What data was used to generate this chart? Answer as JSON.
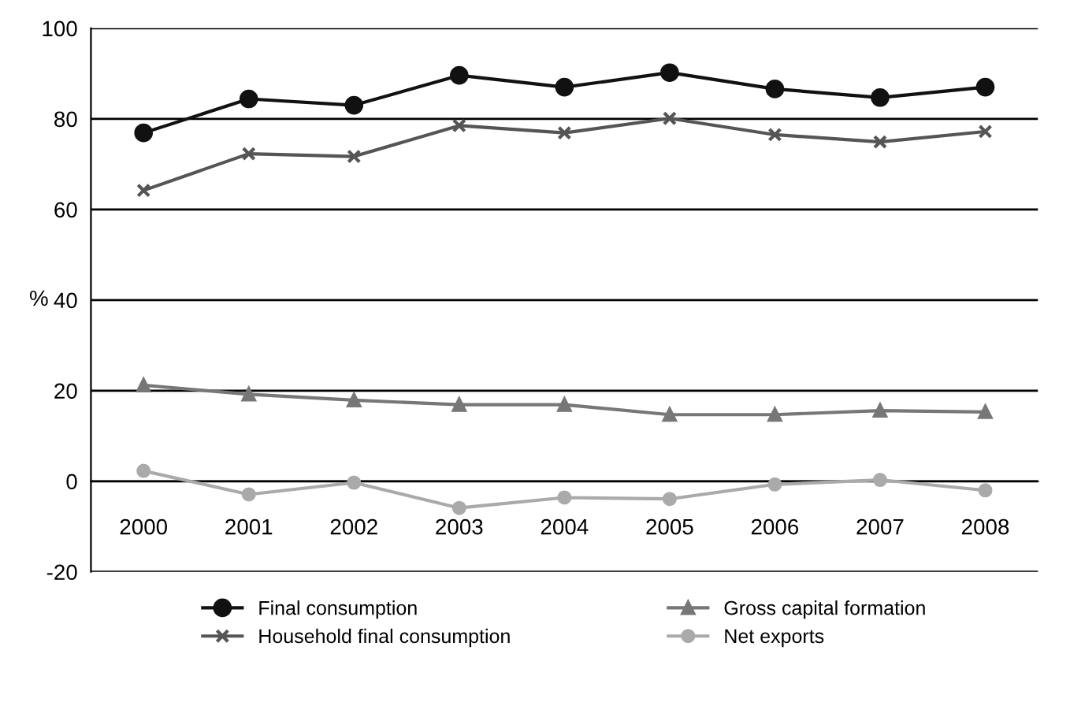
{
  "chart_data": {
    "type": "line",
    "ylabel": "%",
    "categories": [
      "2000",
      "2001",
      "2002",
      "2003",
      "2004",
      "2005",
      "2006",
      "2007",
      "2008"
    ],
    "series": [
      {
        "name": "Final consumption",
        "color": "#111111",
        "marker": "circle",
        "values": [
          76.9,
          84.4,
          83,
          89.6,
          87,
          90.2,
          86.6,
          84.7,
          87
        ]
      },
      {
        "name": "Household final consumption",
        "color": "#555555",
        "marker": "cross",
        "values": [
          64.2,
          72.3,
          71.7,
          78.5,
          76.9,
          80.1,
          76.5,
          74.9,
          77.2
        ]
      },
      {
        "name": "Gross capital formation",
        "color": "#777777",
        "marker": "triangle",
        "values": [
          21.2,
          19.2,
          17.9,
          16.9,
          16.9,
          14.7,
          14.7,
          15.6,
          15.3
        ]
      },
      {
        "name": "Net exports",
        "color": "#aaaaaa",
        "marker": "circle",
        "values": [
          2.3,
          -2.9,
          -0.3,
          -5.9,
          -3.6,
          -3.9,
          -0.7,
          0.3,
          -2
        ]
      }
    ],
    "ylim": [
      -20,
      100
    ],
    "yticks": [
      -20,
      0,
      20,
      40,
      60,
      80,
      100
    ],
    "grid": "y",
    "legend": "bottom"
  }
}
